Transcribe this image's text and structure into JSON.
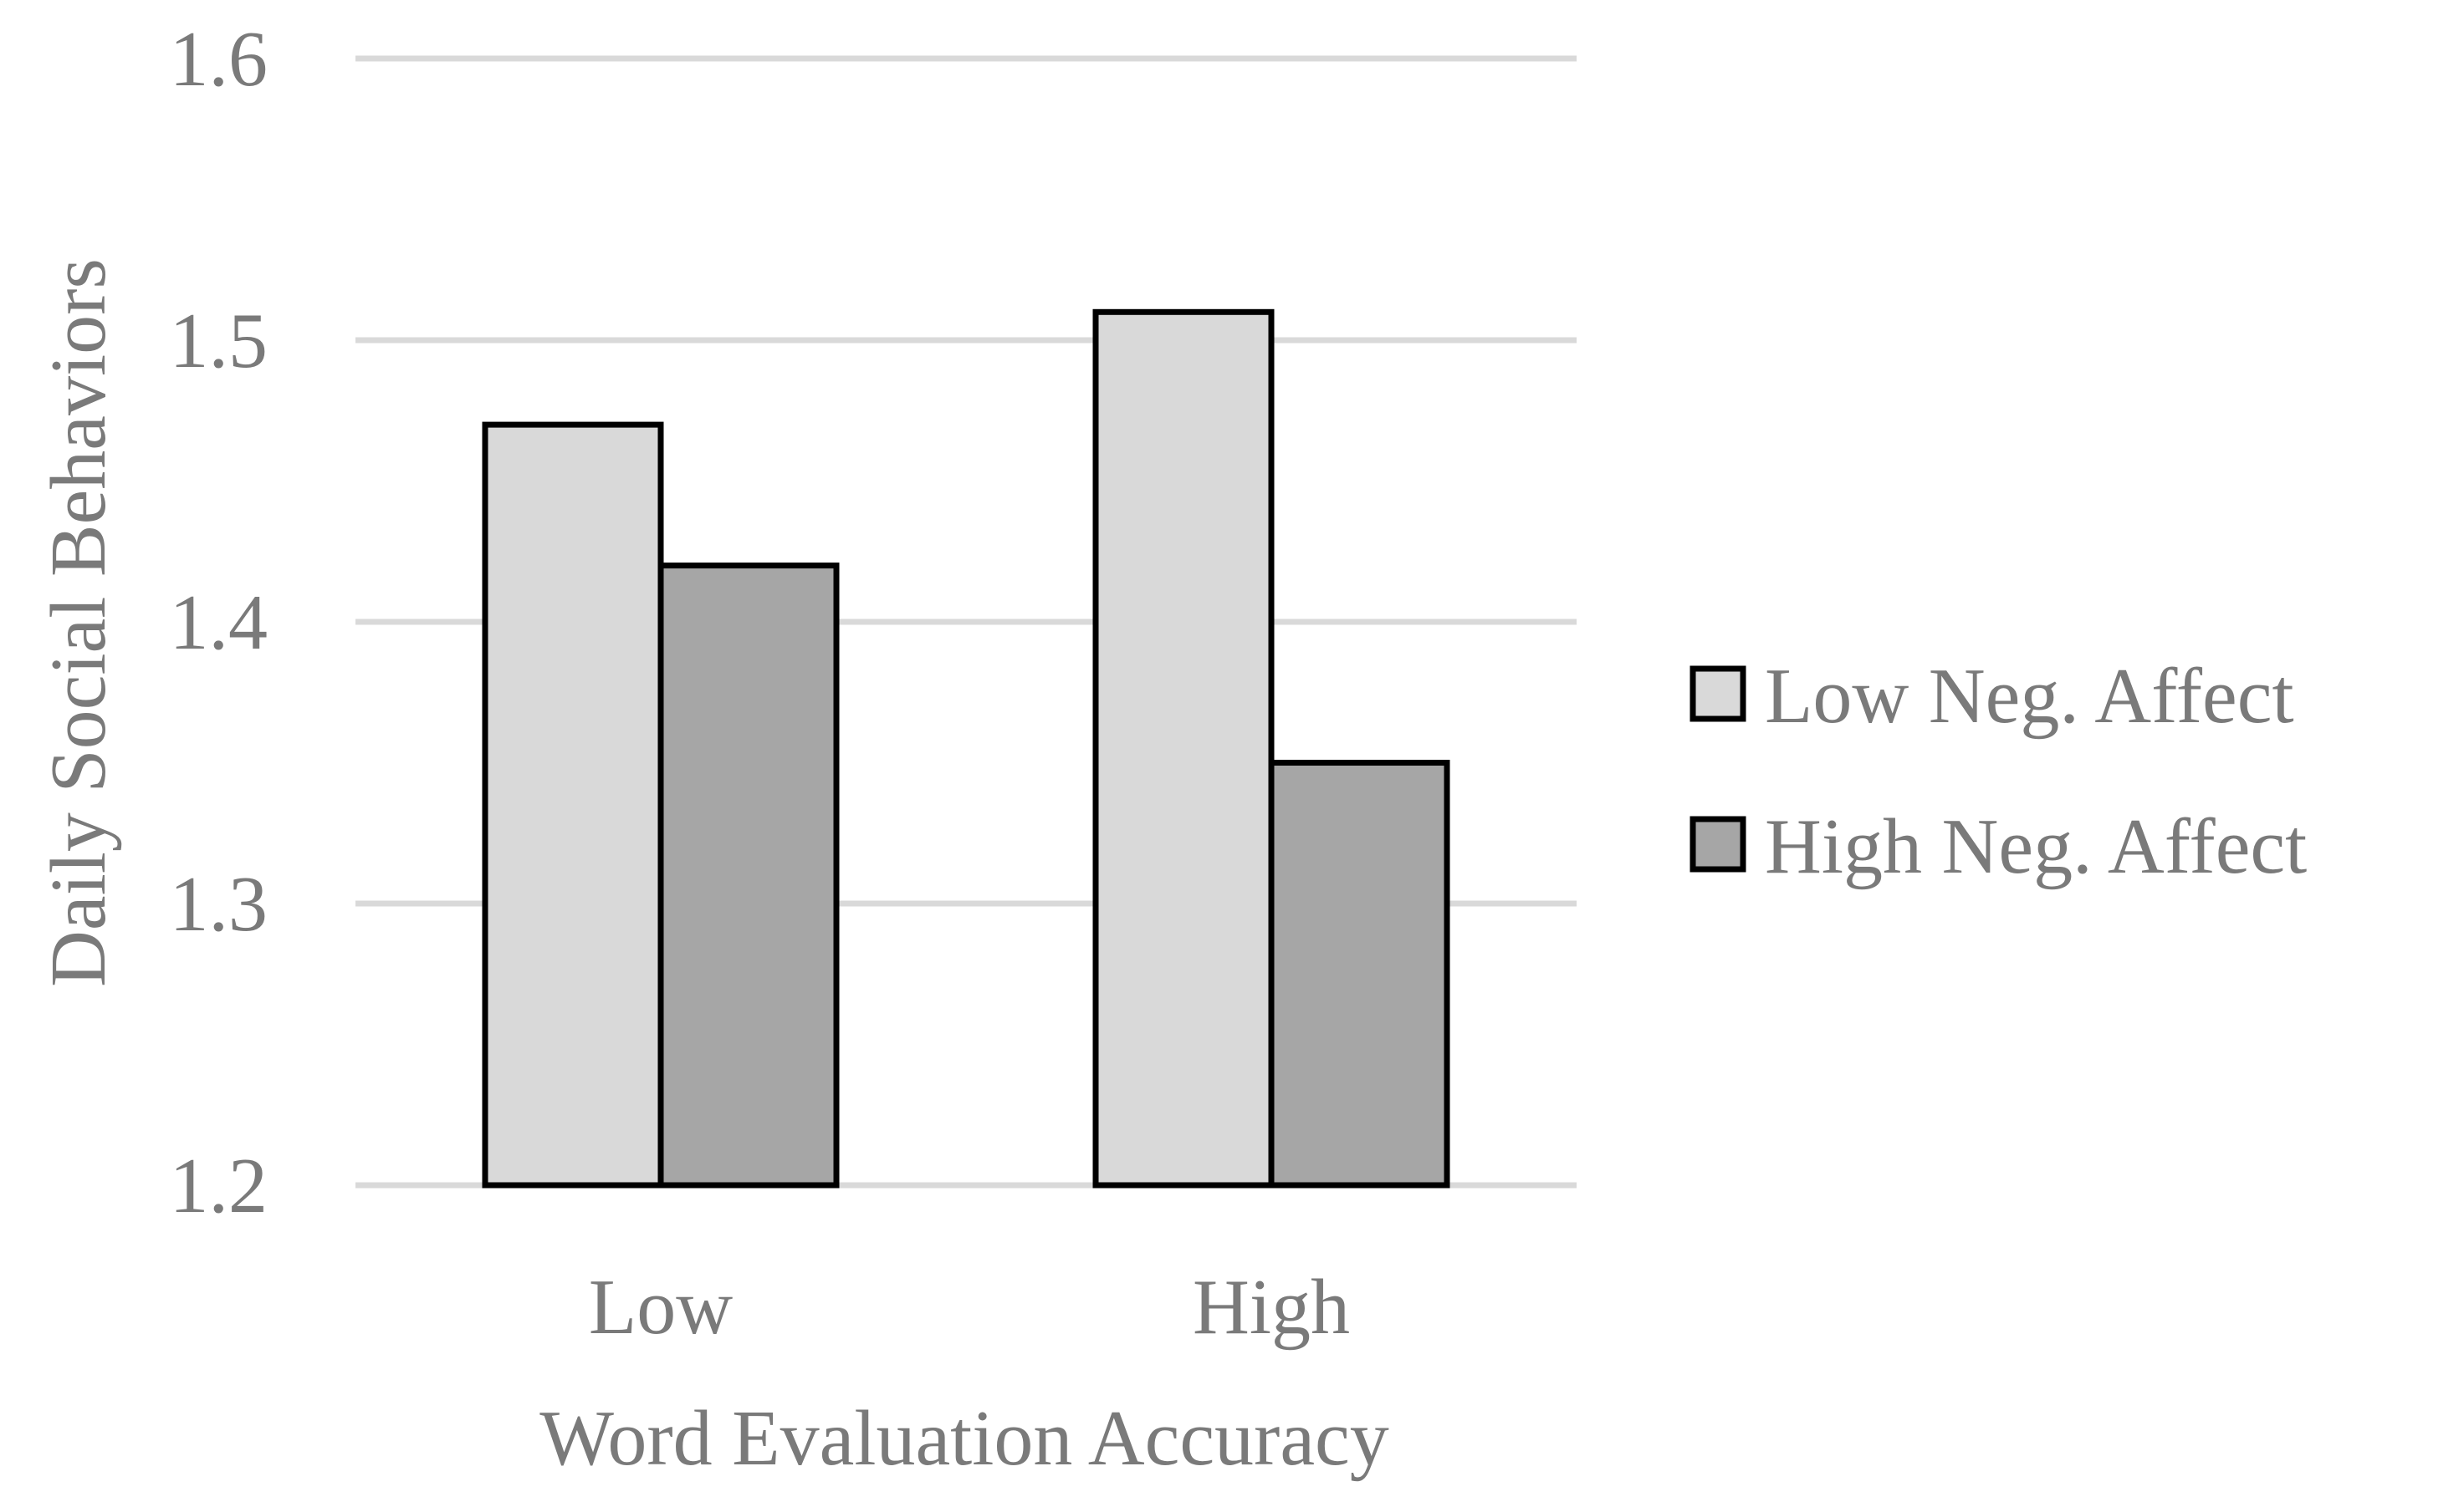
{
  "chart_data": {
    "type": "bar",
    "title": "",
    "xlabel": "Word Evaluation Accuracy",
    "ylabel": "Daily Social Behaviors",
    "categories": [
      "Low",
      "High"
    ],
    "ylim": [
      1.2,
      1.6
    ],
    "yticks": [
      "1.2",
      "1.3",
      "1.4",
      "1.5",
      "1.6"
    ],
    "grid": true,
    "legend_position": "right",
    "series": [
      {
        "name": "Low Neg. Affect",
        "values": [
          1.47,
          1.51
        ],
        "color": "#d9d9d9"
      },
      {
        "name": "High Neg. Affect",
        "values": [
          1.42,
          1.35
        ],
        "color": "#a6a6a6"
      }
    ]
  }
}
